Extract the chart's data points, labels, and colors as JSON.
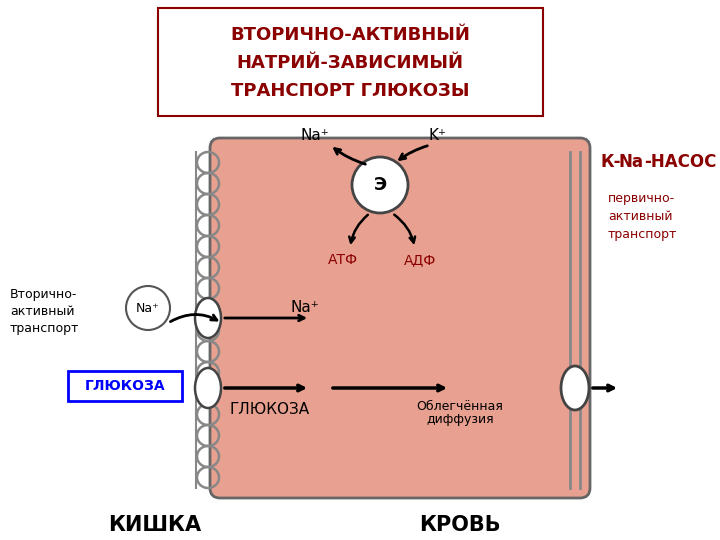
{
  "title_color": "#8B0000",
  "title_box_color": "#8B0000",
  "bg_color": "#ffffff",
  "cell_fill": "#E8A090",
  "cell_fill_light": "#F0B8A8",
  "kishka_label": "КИШКА",
  "krov_label": "КРОВЬ",
  "na_pump_label_k": "К-",
  "na_pump_label_na": "Na",
  "na_pump_label_rest": "-НАСОС",
  "primary_transport": "первично-\nактивный\nтранспорт",
  "secondary_transport": "Вторично-\nактивный\nтранспорт",
  "glucose_box_label": "ГЛЮКОЗА",
  "glucose_inside_label": "ГЛЮКОЗА",
  "facilitated_line1": "Облегчённая",
  "facilitated_line2": "диффузия",
  "atf_label": "АТФ",
  "adf_label": "АДФ",
  "na_plus_label": "Na⁺",
  "k_plus_label": "K⁺",
  "na_inside_label": "Na⁺",
  "enzyme_label": "Э",
  "title_lines": [
    "ВТОРИЧНО-АКТИВНЫЙ",
    "НАТРИЙ-ЗАВИСИМЫЙ",
    "ТРАНСПОРТ ГЛЮКОЗЫ"
  ]
}
